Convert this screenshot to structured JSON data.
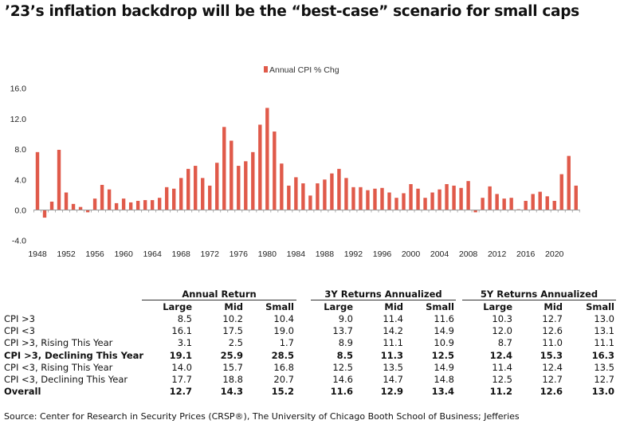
{
  "title": "’23’s inflation backdrop will be the “best-case” scenario for small caps",
  "chart_data": {
    "type": "bar",
    "title": "",
    "legend": [
      "Annual CPI % Chg"
    ],
    "legend_position": "top-center",
    "color": "#e05a4a",
    "ylim": [
      -4,
      16
    ],
    "yticks": [
      "16.0",
      "12.0",
      "8.0",
      "4.0",
      "0.0",
      "-4.0"
    ],
    "ytick_values": [
      16,
      12,
      8,
      4,
      0,
      -4
    ],
    "xtick_labels": [
      "1948",
      "1952",
      "1956",
      "1960",
      "1964",
      "1968",
      "1972",
      "1976",
      "1980",
      "1984",
      "1988",
      "1992",
      "1996",
      "2000",
      "2004",
      "2008",
      "2012",
      "2016",
      "2020"
    ],
    "x_start": 1948,
    "series": [
      {
        "name": "Annual CPI % Chg",
        "values": [
          7.6,
          -1.0,
          1.1,
          7.9,
          2.3,
          0.8,
          0.4,
          -0.3,
          1.5,
          3.3,
          2.7,
          0.9,
          1.5,
          1.0,
          1.2,
          1.3,
          1.3,
          1.6,
          3.0,
          2.8,
          4.2,
          5.4,
          5.8,
          4.2,
          3.2,
          6.2,
          10.9,
          9.1,
          5.8,
          6.4,
          7.6,
          11.2,
          13.4,
          10.3,
          6.1,
          3.2,
          4.3,
          3.5,
          1.9,
          3.5,
          4.0,
          4.8,
          5.4,
          4.2,
          3.0,
          3.0,
          2.6,
          2.8,
          2.9,
          2.3,
          1.6,
          2.2,
          3.4,
          2.8,
          1.6,
          2.3,
          2.7,
          3.4,
          3.2,
          2.9,
          3.8,
          -0.3,
          1.6,
          3.1,
          2.1,
          1.5,
          1.6,
          0.1,
          1.2,
          2.1,
          2.4,
          1.8,
          1.2,
          4.7,
          7.1,
          3.2
        ]
      }
    ]
  },
  "table": {
    "groups": [
      "Annual Return",
      "3Y Returns Annualized",
      "5Y Returns Annualized"
    ],
    "columns": [
      "Large",
      "Mid",
      "Small",
      "Large",
      "Mid",
      "Small",
      "Large",
      "Mid",
      "Small"
    ],
    "rows": [
      {
        "label": "CPI >3",
        "bold": false,
        "values": [
          "8.5",
          "10.2",
          "10.4",
          "9.0",
          "11.4",
          "11.6",
          "10.3",
          "12.7",
          "13.0"
        ]
      },
      {
        "label": "CPI <3",
        "bold": false,
        "values": [
          "16.1",
          "17.5",
          "19.0",
          "13.7",
          "14.2",
          "14.9",
          "12.0",
          "12.6",
          "13.1"
        ]
      },
      {
        "label": "CPI >3, Rising This Year",
        "bold": false,
        "values": [
          "3.1",
          "2.5",
          "1.7",
          "8.9",
          "11.1",
          "10.9",
          "8.7",
          "11.0",
          "11.1"
        ]
      },
      {
        "label": "CPI >3, Declining This Year",
        "bold": true,
        "values": [
          "19.1",
          "25.9",
          "28.5",
          "8.5",
          "11.3",
          "12.5",
          "12.4",
          "15.3",
          "16.3"
        ]
      },
      {
        "label": "CPI <3, Rising This Year",
        "bold": false,
        "values": [
          "14.0",
          "15.7",
          "16.8",
          "12.5",
          "13.5",
          "14.9",
          "11.4",
          "12.4",
          "13.5"
        ]
      },
      {
        "label": "CPI <3, Declining This Year",
        "bold": false,
        "values": [
          "17.7",
          "18.8",
          "20.7",
          "14.6",
          "14.7",
          "14.8",
          "12.5",
          "12.7",
          "12.7"
        ]
      },
      {
        "label": "Overall",
        "bold": true,
        "values": [
          "12.7",
          "14.3",
          "15.2",
          "11.6",
          "12.9",
          "13.4",
          "11.2",
          "12.6",
          "13.0"
        ]
      }
    ]
  },
  "source": "Source: Center for Research in Security Prices (CRSP®), The University of Chicago Booth School of Business; Jefferies"
}
